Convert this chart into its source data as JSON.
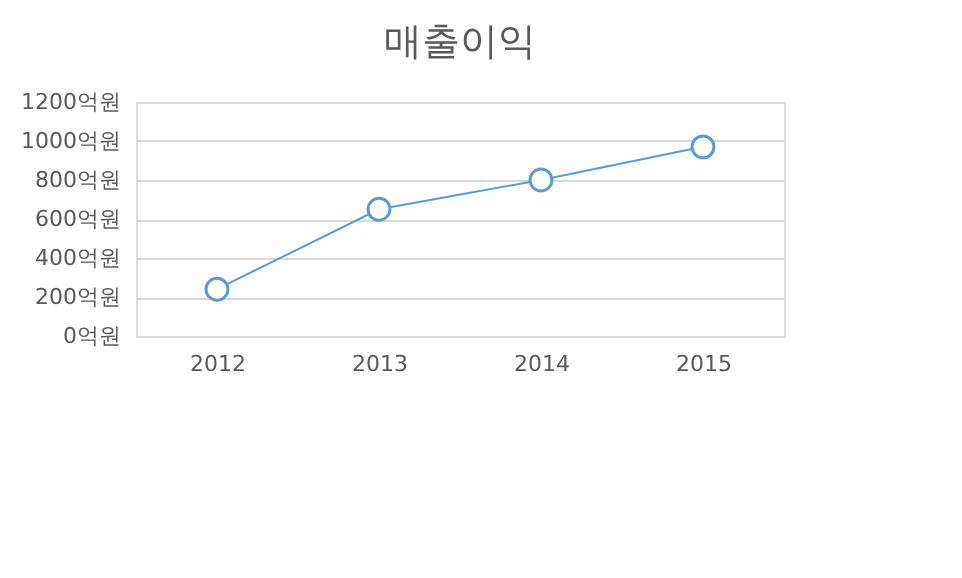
{
  "chart_data": {
    "type": "line",
    "title": "매출이익",
    "categories": [
      "2012",
      "2013",
      "2014",
      "2015"
    ],
    "series": [
      {
        "color": "#5b9bd5",
        "values": [
          240,
          650,
          800,
          970
        ]
      }
    ],
    "ylim": [
      0,
      1200
    ],
    "yticks": [
      {
        "value": 0,
        "label": "0억원"
      },
      {
        "value": 200,
        "label": "200억원"
      },
      {
        "value": 400,
        "label": "400억원"
      },
      {
        "value": 600,
        "label": "600억원"
      },
      {
        "value": 800,
        "label": "800억원"
      },
      {
        "value": 1000,
        "label": "1000억원"
      },
      {
        "value": 1200,
        "label": "1200억원"
      }
    ],
    "grid": "y",
    "marker": "circle",
    "line_style": "solid"
  }
}
